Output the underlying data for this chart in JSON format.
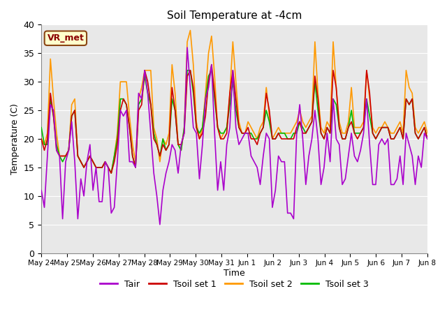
{
  "title": "Soil Temperature at -4cm",
  "xlabel": "Time",
  "ylabel": "Temperature (C)",
  "ylim": [
    0,
    40
  ],
  "yticks": [
    0,
    5,
    10,
    15,
    20,
    25,
    30,
    35,
    40
  ],
  "annotation": "VR_met",
  "bg_color": "#e8e8e8",
  "colors": {
    "Tair": "#aa00cc",
    "Tsoil1": "#cc0000",
    "Tsoil2": "#ff9900",
    "Tsoil3": "#00bb00"
  },
  "legend": [
    "Tair",
    "Tsoil set 1",
    "Tsoil set 2",
    "Tsoil set 3"
  ],
  "xtick_labels": [
    "May 24",
    "May 25",
    "May 26",
    "May 27",
    "May 28",
    "May 29",
    "May 30",
    "May 31",
    "Jun 1",
    "Jun 2",
    "Jun 3",
    "Jun 4",
    "Jun 5",
    "Jun 6",
    "Jun 7",
    "Jun 8"
  ],
  "Tair": [
    11,
    8,
    17,
    26,
    25,
    18,
    17,
    6,
    16,
    18,
    23,
    16,
    6,
    13,
    10,
    16,
    19,
    11,
    15,
    9,
    9,
    16,
    15,
    7,
    8,
    16,
    25,
    24,
    25,
    16,
    16,
    15,
    28,
    27,
    32,
    28,
    21,
    14,
    10,
    5,
    11,
    14,
    16,
    19,
    18,
    14,
    19,
    21,
    36,
    29,
    22,
    21,
    13,
    19,
    27,
    29,
    33,
    21,
    11,
    16,
    11,
    19,
    22,
    32,
    22,
    19,
    20,
    21,
    21,
    17,
    16,
    15,
    12,
    17,
    21,
    20,
    8,
    11,
    17,
    16,
    16,
    7,
    7,
    6,
    21,
    26,
    20,
    12,
    17,
    20,
    25,
    20,
    12,
    15,
    21,
    16,
    27,
    20,
    19,
    12,
    13,
    17,
    21,
    17,
    16,
    18,
    21,
    27,
    19,
    12,
    12,
    19,
    20,
    19,
    20,
    12,
    12,
    13,
    17,
    12,
    21,
    19,
    17,
    12,
    17,
    15,
    21,
    20
  ],
  "Tsoil1": [
    20,
    18,
    20,
    28,
    24,
    18,
    17,
    17,
    17,
    18,
    24,
    25,
    17,
    16,
    15,
    16,
    17,
    16,
    15,
    15,
    15,
    16,
    15,
    14,
    16,
    19,
    25,
    27,
    26,
    22,
    17,
    15,
    25,
    26,
    32,
    30,
    26,
    20,
    19,
    17,
    19,
    18,
    19,
    29,
    25,
    19,
    19,
    21,
    31,
    32,
    29,
    22,
    20,
    21,
    24,
    30,
    33,
    28,
    22,
    20,
    20,
    21,
    28,
    32,
    27,
    22,
    21,
    21,
    22,
    20,
    20,
    19,
    21,
    22,
    28,
    25,
    20,
    20,
    21,
    20,
    20,
    20,
    20,
    20,
    22,
    23,
    21,
    21,
    22,
    23,
    31,
    27,
    21,
    20,
    22,
    21,
    32,
    29,
    22,
    20,
    20,
    22,
    23,
    21,
    20,
    21,
    22,
    32,
    28,
    21,
    20,
    21,
    22,
    22,
    22,
    20,
    20,
    21,
    22,
    20,
    27,
    26,
    27,
    21,
    20,
    21,
    22,
    20
  ],
  "Tsoil2": [
    20,
    19,
    21,
    34,
    27,
    21,
    17,
    17,
    17,
    18,
    26,
    27,
    17,
    16,
    15,
    16,
    17,
    16,
    15,
    15,
    15,
    16,
    15,
    14,
    17,
    21,
    30,
    30,
    30,
    24,
    19,
    16,
    27,
    29,
    32,
    32,
    32,
    22,
    20,
    16,
    20,
    19,
    21,
    33,
    28,
    19,
    18,
    22,
    37,
    39,
    33,
    23,
    20,
    22,
    28,
    35,
    38,
    31,
    22,
    20,
    21,
    22,
    28,
    37,
    30,
    23,
    21,
    21,
    23,
    22,
    21,
    20,
    22,
    23,
    29,
    24,
    20,
    21,
    22,
    21,
    21,
    21,
    21,
    22,
    23,
    25,
    23,
    22,
    23,
    24,
    37,
    28,
    22,
    21,
    23,
    22,
    37,
    29,
    23,
    21,
    21,
    23,
    29,
    22,
    22,
    22,
    23,
    32,
    27,
    22,
    21,
    22,
    22,
    23,
    22,
    21,
    21,
    22,
    23,
    21,
    32,
    29,
    28,
    22,
    21,
    22,
    23,
    21
  ],
  "Tsoil3": [
    22,
    19,
    19,
    27,
    24,
    19,
    17,
    16,
    17,
    18,
    24,
    25,
    17,
    16,
    15,
    16,
    17,
    16,
    15,
    15,
    15,
    16,
    15,
    14,
    17,
    20,
    27,
    27,
    26,
    22,
    17,
    15,
    26,
    27,
    31,
    28,
    26,
    21,
    19,
    17,
    20,
    18,
    19,
    27,
    25,
    19,
    18,
    22,
    32,
    32,
    28,
    22,
    21,
    22,
    27,
    31,
    32,
    27,
    22,
    21,
    21,
    22,
    26,
    30,
    25,
    22,
    21,
    21,
    21,
    21,
    20,
    20,
    21,
    22,
    25,
    23,
    20,
    20,
    21,
    21,
    21,
    20,
    20,
    21,
    21,
    23,
    22,
    21,
    22,
    23,
    30,
    25,
    21,
    20,
    22,
    21,
    27,
    26,
    22,
    20,
    20,
    22,
    25,
    21,
    21,
    21,
    22,
    27,
    24,
    21,
    20,
    21,
    22,
    22,
    22,
    20,
    20,
    21,
    22,
    20,
    27,
    26,
    27,
    21,
    20,
    21,
    22,
    20
  ]
}
